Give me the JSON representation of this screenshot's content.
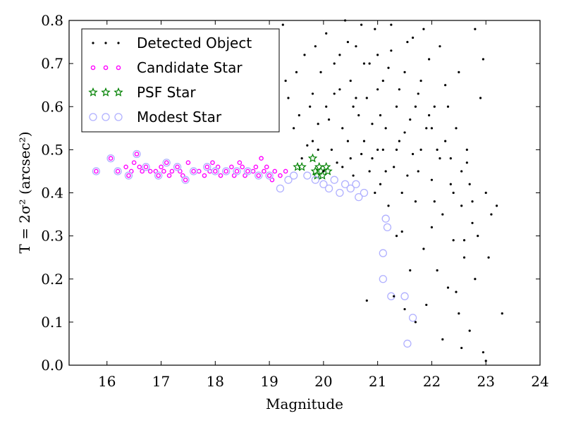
{
  "chart_data": {
    "type": "scatter",
    "xlabel": "Magnitude",
    "ylabel": "T = 2σ² (arcsec²)",
    "xlim": [
      15.3,
      24
    ],
    "ylim": [
      0.0,
      0.8
    ],
    "xticks": [
      "16",
      "17",
      "18",
      "19",
      "20",
      "21",
      "22",
      "23",
      "24"
    ],
    "yticks": [
      "0.0",
      "0.1",
      "0.2",
      "0.3",
      "0.4",
      "0.5",
      "0.6",
      "0.7",
      "0.8"
    ],
    "grid": false,
    "legend_position": "top-left",
    "series": [
      {
        "name": "Detected Object",
        "color": "#000000",
        "marker": "dot",
        "points": [
          [
            19.25,
            0.79
          ],
          [
            19.3,
            0.66
          ],
          [
            19.35,
            0.62
          ],
          [
            19.45,
            0.55
          ],
          [
            19.55,
            0.58
          ],
          [
            19.6,
            0.48
          ],
          [
            19.7,
            0.51
          ],
          [
            19.75,
            0.6
          ],
          [
            19.8,
            0.52
          ],
          [
            19.85,
            0.74
          ],
          [
            19.9,
            0.5
          ],
          [
            19.95,
            0.68
          ],
          [
            20.0,
            0.45
          ],
          [
            20.05,
            0.77
          ],
          [
            20.1,
            0.57
          ],
          [
            20.15,
            0.5
          ],
          [
            20.2,
            0.63
          ],
          [
            20.25,
            0.47
          ],
          [
            20.3,
            0.72
          ],
          [
            20.35,
            0.55
          ],
          [
            20.4,
            0.8
          ],
          [
            20.45,
            0.52
          ],
          [
            20.5,
            0.66
          ],
          [
            20.55,
            0.44
          ],
          [
            20.6,
            0.74
          ],
          [
            20.65,
            0.58
          ],
          [
            20.7,
            0.49
          ],
          [
            20.75,
            0.7
          ],
          [
            20.8,
            0.62
          ],
          [
            20.85,
            0.45
          ],
          [
            20.9,
            0.56
          ],
          [
            20.95,
            0.78
          ],
          [
            21.0,
            0.5
          ],
          [
            21.05,
            0.42
          ],
          [
            21.1,
            0.66
          ],
          [
            21.15,
            0.55
          ],
          [
            21.2,
            0.37
          ],
          [
            21.25,
            0.73
          ],
          [
            21.3,
            0.46
          ],
          [
            21.35,
            0.6
          ],
          [
            21.4,
            0.52
          ],
          [
            21.45,
            0.31
          ],
          [
            21.5,
            0.68
          ],
          [
            21.55,
            0.44
          ],
          [
            21.6,
            0.57
          ],
          [
            21.65,
            0.76
          ],
          [
            21.7,
            0.38
          ],
          [
            21.75,
            0.63
          ],
          [
            21.8,
            0.5
          ],
          [
            21.85,
            0.27
          ],
          [
            21.9,
            0.55
          ],
          [
            21.95,
            0.71
          ],
          [
            22.0,
            0.43
          ],
          [
            22.05,
            0.6
          ],
          [
            22.1,
            0.22
          ],
          [
            22.15,
            0.48
          ],
          [
            22.2,
            0.35
          ],
          [
            22.25,
            0.65
          ],
          [
            22.3,
            0.18
          ],
          [
            22.35,
            0.42
          ],
          [
            22.4,
            0.29
          ],
          [
            22.45,
            0.55
          ],
          [
            22.5,
            0.12
          ],
          [
            22.55,
            0.37
          ],
          [
            22.6,
            0.25
          ],
          [
            22.65,
            0.47
          ],
          [
            22.7,
            0.08
          ],
          [
            22.75,
            0.33
          ],
          [
            22.8,
            0.2
          ],
          [
            22.9,
            0.62
          ],
          [
            22.95,
            0.71
          ],
          [
            23.0,
            0.4
          ],
          [
            23.05,
            0.25
          ],
          [
            23.1,
            0.35
          ],
          [
            23.2,
            0.37
          ],
          [
            23.3,
            0.12
          ],
          [
            22.95,
            0.03
          ],
          [
            23.0,
            0.01
          ],
          [
            22.55,
            0.04
          ],
          [
            21.5,
            0.13
          ],
          [
            20.8,
            0.15
          ],
          [
            21.3,
            0.16
          ],
          [
            21.7,
            0.1
          ],
          [
            21.9,
            0.14
          ],
          [
            22.2,
            0.06
          ],
          [
            22.45,
            0.17
          ],
          [
            21.35,
            0.3
          ],
          [
            21.6,
            0.22
          ],
          [
            22.0,
            0.32
          ],
          [
            22.6,
            0.29
          ],
          [
            19.5,
            0.68
          ],
          [
            19.65,
            0.72
          ],
          [
            19.8,
            0.63
          ],
          [
            19.9,
            0.56
          ],
          [
            20.05,
            0.6
          ],
          [
            20.2,
            0.7
          ],
          [
            20.35,
            0.46
          ],
          [
            20.5,
            0.48
          ],
          [
            20.6,
            0.62
          ],
          [
            20.75,
            0.52
          ],
          [
            20.9,
            0.48
          ],
          [
            21.05,
            0.58
          ],
          [
            21.2,
            0.69
          ],
          [
            21.35,
            0.5
          ],
          [
            21.5,
            0.54
          ],
          [
            21.65,
            0.49
          ],
          [
            21.8,
            0.66
          ],
          [
            21.95,
            0.58
          ],
          [
            22.1,
            0.5
          ],
          [
            22.25,
            0.52
          ],
          [
            22.4,
            0.4
          ],
          [
            22.55,
            0.45
          ],
          [
            22.7,
            0.42
          ],
          [
            22.85,
            0.3
          ],
          [
            20.45,
            0.75
          ],
          [
            20.7,
            0.79
          ],
          [
            21.0,
            0.72
          ],
          [
            21.25,
            0.79
          ],
          [
            21.55,
            0.75
          ],
          [
            21.85,
            0.78
          ],
          [
            22.15,
            0.74
          ],
          [
            22.5,
            0.68
          ],
          [
            22.8,
            0.78
          ],
          [
            20.3,
            0.64
          ],
          [
            20.55,
            0.6
          ],
          [
            20.85,
            0.7
          ],
          [
            21.1,
            0.5
          ],
          [
            21.4,
            0.64
          ],
          [
            21.7,
            0.6
          ],
          [
            22.0,
            0.55
          ],
          [
            22.3,
            0.6
          ],
          [
            22.65,
            0.5
          ],
          [
            20.95,
            0.4
          ],
          [
            21.15,
            0.45
          ],
          [
            21.45,
            0.4
          ],
          [
            21.75,
            0.45
          ],
          [
            22.05,
            0.38
          ],
          [
            22.35,
            0.48
          ],
          [
            22.75,
            0.38
          ],
          [
            21.0,
            0.64
          ]
        ]
      },
      {
        "name": "Candidate Star",
        "color": "#ff00ff",
        "marker": "circle",
        "points": [
          [
            15.8,
            0.45
          ],
          [
            16.07,
            0.48
          ],
          [
            16.2,
            0.45
          ],
          [
            16.35,
            0.46
          ],
          [
            16.4,
            0.44
          ],
          [
            16.45,
            0.45
          ],
          [
            16.5,
            0.47
          ],
          [
            16.55,
            0.49
          ],
          [
            16.6,
            0.46
          ],
          [
            16.65,
            0.45
          ],
          [
            16.72,
            0.46
          ],
          [
            16.8,
            0.45
          ],
          [
            16.9,
            0.45
          ],
          [
            16.95,
            0.44
          ],
          [
            17.0,
            0.46
          ],
          [
            17.05,
            0.45
          ],
          [
            17.1,
            0.47
          ],
          [
            17.15,
            0.44
          ],
          [
            17.2,
            0.45
          ],
          [
            17.3,
            0.46
          ],
          [
            17.35,
            0.45
          ],
          [
            17.4,
            0.44
          ],
          [
            17.45,
            0.43
          ],
          [
            17.5,
            0.47
          ],
          [
            17.6,
            0.45
          ],
          [
            17.7,
            0.45
          ],
          [
            17.8,
            0.44
          ],
          [
            17.85,
            0.46
          ],
          [
            17.9,
            0.45
          ],
          [
            17.95,
            0.47
          ],
          [
            18.0,
            0.45
          ],
          [
            18.05,
            0.46
          ],
          [
            18.1,
            0.44
          ],
          [
            18.2,
            0.45
          ],
          [
            18.3,
            0.46
          ],
          [
            18.35,
            0.44
          ],
          [
            18.4,
            0.45
          ],
          [
            18.45,
            0.47
          ],
          [
            18.5,
            0.46
          ],
          [
            18.55,
            0.44
          ],
          [
            18.6,
            0.45
          ],
          [
            18.7,
            0.45
          ],
          [
            18.75,
            0.46
          ],
          [
            18.8,
            0.44
          ],
          [
            18.85,
            0.48
          ],
          [
            18.9,
            0.45
          ],
          [
            18.95,
            0.46
          ],
          [
            19.0,
            0.44
          ],
          [
            19.05,
            0.43
          ],
          [
            19.1,
            0.45
          ],
          [
            19.2,
            0.44
          ],
          [
            19.3,
            0.45
          ]
        ]
      },
      {
        "name": "PSF Star",
        "color": "#008000",
        "marker": "star",
        "points": [
          [
            19.52,
            0.46
          ],
          [
            19.6,
            0.46
          ],
          [
            19.8,
            0.48
          ],
          [
            19.85,
            0.45
          ],
          [
            19.88,
            0.44
          ],
          [
            19.92,
            0.46
          ],
          [
            19.95,
            0.45
          ],
          [
            19.98,
            0.44
          ],
          [
            20.05,
            0.46
          ],
          [
            20.08,
            0.45
          ]
        ]
      },
      {
        "name": "Modest Star",
        "color": "#b0b0ff",
        "marker": "ring",
        "points": [
          [
            15.8,
            0.45
          ],
          [
            16.07,
            0.48
          ],
          [
            16.2,
            0.45
          ],
          [
            16.4,
            0.44
          ],
          [
            16.55,
            0.49
          ],
          [
            16.72,
            0.46
          ],
          [
            16.95,
            0.44
          ],
          [
            17.1,
            0.47
          ],
          [
            17.3,
            0.46
          ],
          [
            17.45,
            0.43
          ],
          [
            17.6,
            0.45
          ],
          [
            17.85,
            0.46
          ],
          [
            18.0,
            0.45
          ],
          [
            18.2,
            0.45
          ],
          [
            18.4,
            0.45
          ],
          [
            18.6,
            0.45
          ],
          [
            18.8,
            0.44
          ],
          [
            19.0,
            0.44
          ],
          [
            19.2,
            0.41
          ],
          [
            19.35,
            0.43
          ],
          [
            19.45,
            0.44
          ],
          [
            19.7,
            0.44
          ],
          [
            19.85,
            0.43
          ],
          [
            20.0,
            0.42
          ],
          [
            20.1,
            0.41
          ],
          [
            20.2,
            0.43
          ],
          [
            20.3,
            0.4
          ],
          [
            20.4,
            0.42
          ],
          [
            20.5,
            0.41
          ],
          [
            20.6,
            0.42
          ],
          [
            20.65,
            0.39
          ],
          [
            20.75,
            0.4
          ],
          [
            21.15,
            0.34
          ],
          [
            21.18,
            0.32
          ],
          [
            21.1,
            0.26
          ],
          [
            21.1,
            0.2
          ],
          [
            21.25,
            0.16
          ],
          [
            21.5,
            0.16
          ],
          [
            21.65,
            0.11
          ],
          [
            21.55,
            0.05
          ]
        ]
      }
    ]
  }
}
